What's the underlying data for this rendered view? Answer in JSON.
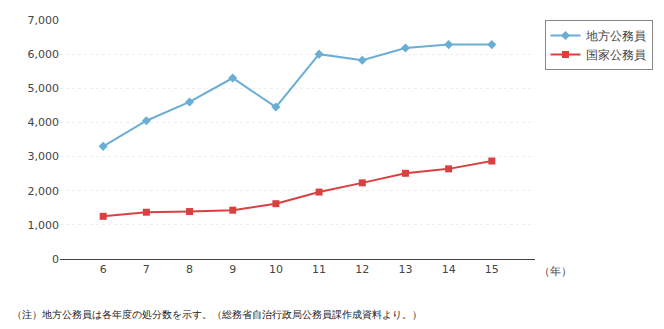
{
  "chart_data": {
    "type": "line",
    "x": [
      6,
      7,
      8,
      9,
      10,
      11,
      12,
      13,
      14,
      15
    ],
    "series": [
      {
        "name": "地方公務員",
        "color": "#6aaed6",
        "marker": "diamond",
        "values": [
          3300,
          4050,
          4600,
          5300,
          4450,
          6000,
          5820,
          6180,
          6280,
          6280
        ]
      },
      {
        "name": "国家公務員",
        "color": "#d94040",
        "marker": "square",
        "values": [
          1250,
          1370,
          1390,
          1430,
          1620,
          1960,
          2230,
          2510,
          2640,
          2870
        ]
      }
    ],
    "xlabel": "（年）",
    "annotations": [
      "（注）地方公務員は各年度の処分数を示す。（総務省自治行政局公務員課作成資料より。）"
    ],
    "xlim": [
      5,
      16
    ],
    "xticks": [
      6,
      7,
      8,
      9,
      10,
      11,
      12,
      13,
      14,
      15
    ],
    "ylim": [
      0,
      7000
    ],
    "yticks": [
      0,
      {
        "value": 1000,
        "label": "1,000"
      },
      {
        "value": 2000,
        "label": "2,000"
      },
      {
        "value": 3000,
        "label": "3,000"
      },
      {
        "value": 4000,
        "label": "4,000"
      },
      {
        "value": 5000,
        "label": "5,000"
      },
      {
        "value": 6000,
        "label": "6,000"
      },
      {
        "value": 7000,
        "label": "7,000"
      }
    ],
    "grid": true,
    "legend": "right"
  }
}
